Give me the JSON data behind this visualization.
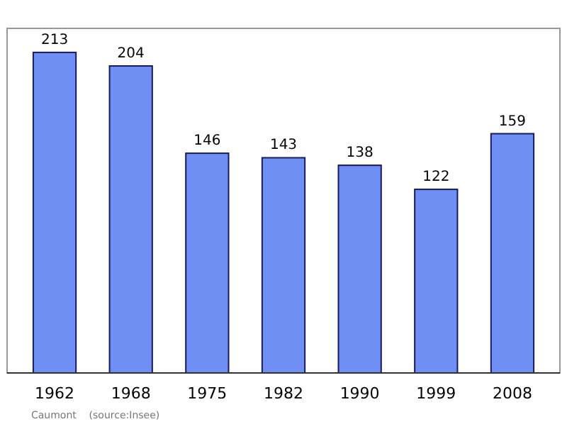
{
  "chart_data": {
    "type": "bar",
    "categories": [
      "1962",
      "1968",
      "1975",
      "1982",
      "1990",
      "1999",
      "2008"
    ],
    "values": [
      213,
      204,
      146,
      143,
      138,
      122,
      159
    ],
    "color": "#6f8ff5",
    "data_labels": true,
    "annotations": [
      "Caumont    (source:Insee)"
    ]
  }
}
